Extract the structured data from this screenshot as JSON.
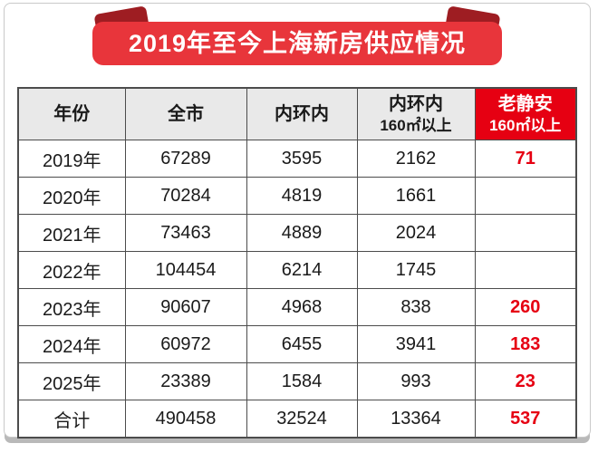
{
  "banner": {
    "title": "2019年至今上海新房供应情况"
  },
  "table": {
    "headers": [
      {
        "line1": "年份",
        "line2": "",
        "highlight": false
      },
      {
        "line1": "全市",
        "line2": "",
        "highlight": false
      },
      {
        "line1": "内环内",
        "line2": "",
        "highlight": false
      },
      {
        "line1": "内环内",
        "line2": "160㎡以上",
        "highlight": false
      },
      {
        "line1": "老静安",
        "line2": "160㎡以上",
        "highlight": true
      }
    ]
  },
  "chart_data": {
    "type": "table",
    "title": "2019年至今上海新房供应情况",
    "columns": [
      "年份",
      "全市",
      "内环内",
      "内环内160㎡以上",
      "老静安160㎡以上"
    ],
    "rows": [
      [
        "2019年",
        67289,
        3595,
        2162,
        71
      ],
      [
        "2020年",
        70284,
        4819,
        1661,
        null
      ],
      [
        "2021年",
        73463,
        4889,
        2024,
        null
      ],
      [
        "2022年",
        104454,
        6214,
        1745,
        null
      ],
      [
        "2023年",
        90607,
        4968,
        838,
        260
      ],
      [
        "2024年",
        60972,
        6455,
        3941,
        183
      ],
      [
        "2025年",
        23389,
        1584,
        993,
        23
      ],
      [
        "合计",
        490458,
        32524,
        13364,
        537
      ]
    ]
  },
  "colors": {
    "accent_red": "#e60012",
    "ribbon_red": "#e8353b",
    "fold_dark_red": "#9e1d22",
    "header_gray": "#e9e9e9",
    "border_gray": "#4c4c4c",
    "shadow_gray": "#b9b9b9"
  }
}
